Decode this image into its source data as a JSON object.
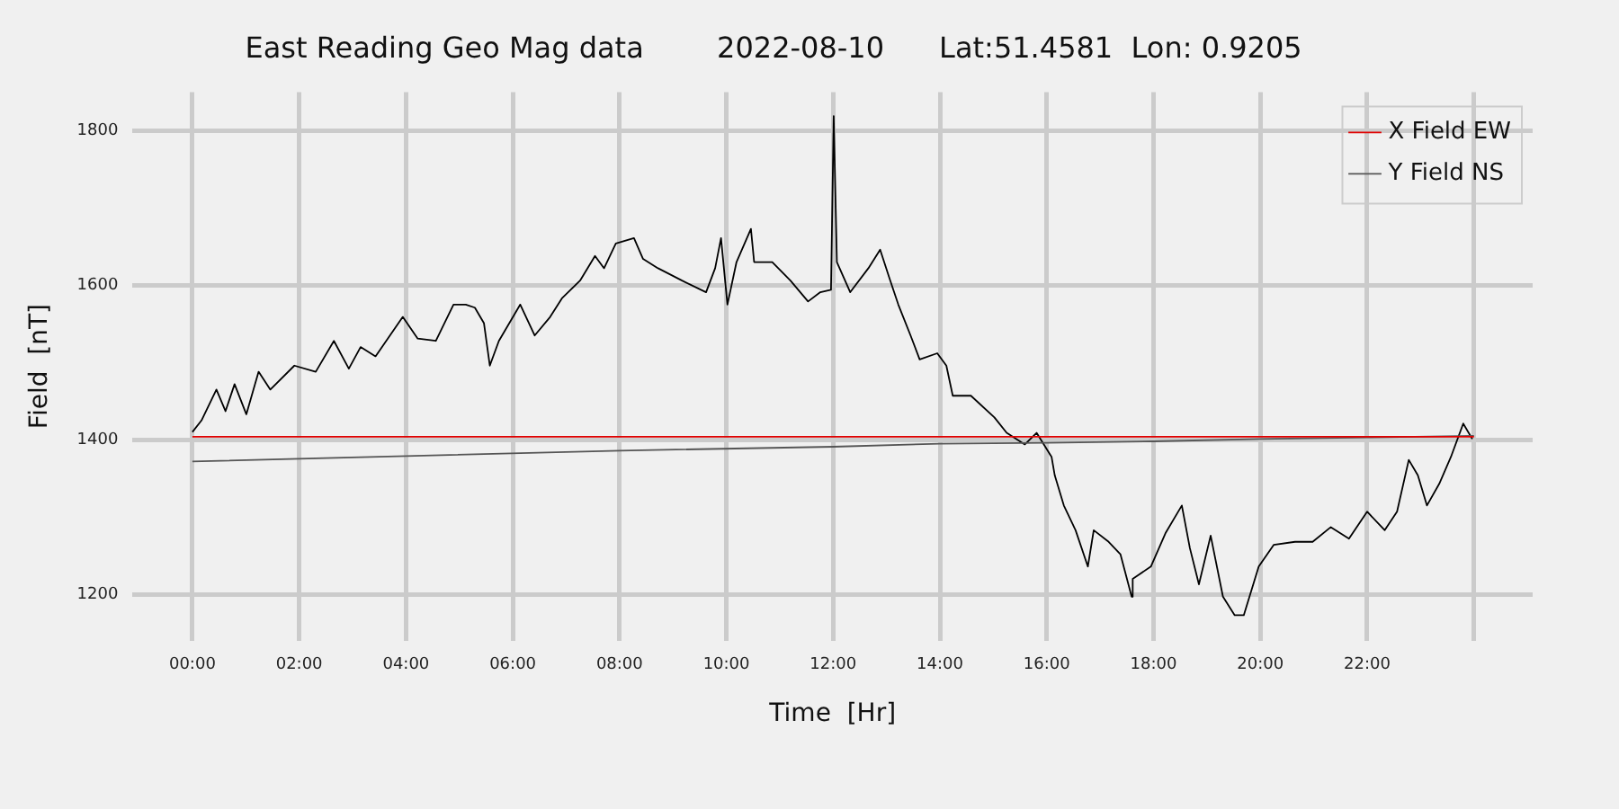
{
  "chart_data": {
    "type": "line",
    "title": "East Reading Geo Mag data        2022-08-10      Lat:51.4581  Lon: 0.9205",
    "xlabel": "Time  [Hr]",
    "ylabel": "Field  [nT]",
    "xlim": [
      -1.12,
      25.1
    ],
    "ylim": [
      1140,
      1850
    ],
    "xticks": [
      {
        "value": 0,
        "label": "00:00"
      },
      {
        "value": 2,
        "label": "02:00"
      },
      {
        "value": 4,
        "label": "04:00"
      },
      {
        "value": 6,
        "label": "06:00"
      },
      {
        "value": 8,
        "label": "08:00"
      },
      {
        "value": 10,
        "label": "10:00"
      },
      {
        "value": 12,
        "label": "12:00"
      },
      {
        "value": 14,
        "label": "14:00"
      },
      {
        "value": 16,
        "label": "16:00"
      },
      {
        "value": 18,
        "label": "18:00"
      },
      {
        "value": 20,
        "label": "20:00"
      },
      {
        "value": 22,
        "label": "22:00"
      },
      {
        "value": 24,
        "label": null
      }
    ],
    "yticks": [
      1200,
      1400,
      1600,
      1800
    ],
    "grid": true,
    "legend": "top right",
    "series": [
      {
        "name": "X Field EW",
        "color": "#e00000",
        "x": [
          0,
          24
        ],
        "values": [
          1404,
          1404
        ]
      },
      {
        "name": "Y Field NS",
        "color": "#555555",
        "x": [
          0,
          4,
          8,
          12,
          14,
          16,
          18,
          20,
          22,
          24
        ],
        "values": [
          1372,
          1379,
          1386,
          1391,
          1395,
          1396,
          1398,
          1401,
          1403,
          1405
        ]
      },
      {
        "color": "#000000",
        "x": [
          0,
          0.17,
          0.45,
          0.62,
          0.79,
          1.01,
          1.24,
          1.46,
          1.91,
          2.31,
          2.65,
          2.93,
          3.15,
          3.43,
          3.94,
          4.22,
          4.56,
          4.89,
          5.12,
          5.29,
          5.46,
          5.57,
          5.74,
          6.14,
          6.41,
          6.7,
          6.92,
          7.26,
          7.54,
          7.71,
          7.93,
          8.27,
          8.44,
          8.72,
          9.17,
          9.62,
          9.79,
          9.9,
          10.02,
          10.19,
          10.46,
          10.52,
          10.86,
          11.2,
          11.53,
          11.76,
          11.96,
          12.01,
          12.07,
          12.32,
          12.66,
          12.88,
          13.05,
          13.22,
          13.45,
          13.62,
          13.95,
          14.12,
          14.24,
          14.58,
          15.02,
          15.25,
          15.59,
          15.81,
          16.09,
          16.15,
          16.32,
          16.54,
          16.77,
          16.88,
          17.16,
          17.38,
          17.59,
          17.61,
          17.95,
          18.23,
          18.53,
          18.68,
          18.85,
          19.07,
          19.3,
          19.52,
          19.69,
          19.97,
          20.25,
          20.65,
          20.98,
          21.32,
          21.66,
          22,
          22.33,
          22.56,
          22.78,
          22.95,
          23.12,
          23.35,
          23.57,
          23.8,
          23.97
        ],
        "values": [
          1410,
          1425,
          1465,
          1437,
          1472,
          1433,
          1488,
          1465,
          1496,
          1488,
          1528,
          1492,
          1520,
          1508,
          1559,
          1531,
          1528,
          1575,
          1575,
          1571,
          1551,
          1496,
          1528,
          1575,
          1535,
          1559,
          1583,
          1606,
          1638,
          1622,
          1654,
          1661,
          1634,
          1622,
          1606,
          1591,
          1622,
          1661,
          1575,
          1630,
          1673,
          1630,
          1630,
          1606,
          1579,
          1591,
          1594,
          1819,
          1630,
          1591,
          1622,
          1646,
          1610,
          1575,
          1535,
          1504,
          1512,
          1496,
          1457,
          1457,
          1429,
          1409,
          1394,
          1409,
          1378,
          1354,
          1315,
          1283,
          1236,
          1283,
          1268,
          1252,
          1197,
          1220,
          1236,
          1280,
          1315,
          1260,
          1213,
          1276,
          1197,
          1173,
          1173,
          1236,
          1264,
          1268,
          1268,
          1287,
          1272,
          1307,
          1283,
          1307,
          1374,
          1354,
          1315,
          1343,
          1378,
          1421,
          1401
        ]
      }
    ]
  }
}
